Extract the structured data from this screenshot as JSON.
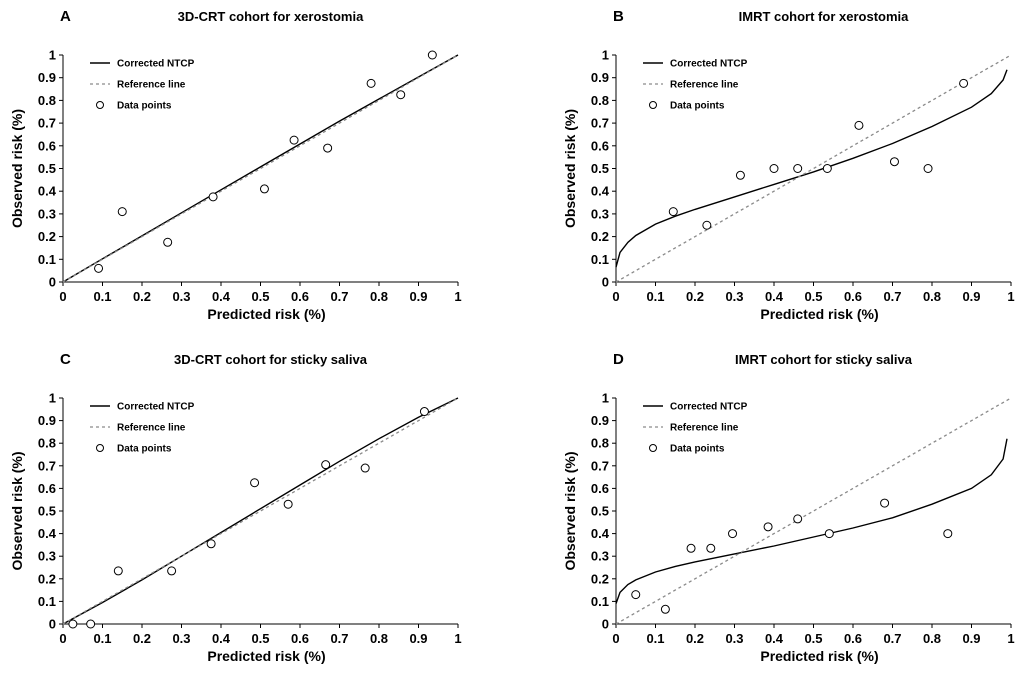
{
  "chart_data": [
    {
      "type": "scatter",
      "panel_label": "A",
      "title": "3D-CRT cohort for xerostomia",
      "xlabel": "Predicted risk (%)",
      "ylabel": "Observed risk (%)",
      "xlim": [
        0,
        1
      ],
      "ylim": [
        0,
        1
      ],
      "ticks": [
        "0",
        "0.1",
        "0.2",
        "0.3",
        "0.4",
        "0.5",
        "0.6",
        "0.7",
        "0.8",
        "0.9",
        "1"
      ],
      "legend": {
        "position": "top-left",
        "entries": [
          "Corrected NTCP",
          "Reference line",
          "Data points"
        ]
      },
      "series": [
        {
          "name": "Corrected NTCP",
          "kind": "line",
          "style": "solid",
          "x": [
            0,
            0.1,
            0.2,
            0.3,
            0.4,
            0.5,
            0.6,
            0.7,
            0.8,
            0.9,
            1
          ],
          "y": [
            0,
            0.102,
            0.203,
            0.305,
            0.406,
            0.507,
            0.608,
            0.709,
            0.806,
            0.903,
            1
          ]
        },
        {
          "name": "Reference line",
          "kind": "line",
          "style": "dashed",
          "x": [
            0,
            1
          ],
          "y": [
            0,
            1
          ]
        },
        {
          "name": "Data points",
          "kind": "points",
          "x": [
            0.09,
            0.15,
            0.265,
            0.38,
            0.51,
            0.585,
            0.67,
            0.78,
            0.855,
            0.935
          ],
          "y": [
            0.06,
            0.31,
            0.175,
            0.375,
            0.41,
            0.625,
            0.59,
            0.875,
            0.825,
            1.0
          ]
        }
      ]
    },
    {
      "type": "scatter",
      "panel_label": "B",
      "title": "IMRT cohort for xerostomia",
      "xlabel": "Predicted risk (%)",
      "ylabel": "Observed risk (%)",
      "xlim": [
        0,
        1
      ],
      "ylim": [
        0,
        1
      ],
      "ticks": [
        "0",
        "0.1",
        "0.2",
        "0.3",
        "0.4",
        "0.5",
        "0.6",
        "0.7",
        "0.8",
        "0.9",
        "1"
      ],
      "legend": {
        "position": "top-left",
        "entries": [
          "Corrected NTCP",
          "Reference line",
          "Data points"
        ]
      },
      "series": [
        {
          "name": "Corrected NTCP",
          "kind": "line",
          "style": "solid",
          "x": [
            0,
            0.01,
            0.03,
            0.05,
            0.1,
            0.15,
            0.2,
            0.3,
            0.4,
            0.5,
            0.6,
            0.7,
            0.8,
            0.9,
            0.95,
            0.98,
            0.99
          ],
          "y": [
            0.065,
            0.13,
            0.175,
            0.205,
            0.255,
            0.29,
            0.32,
            0.375,
            0.43,
            0.485,
            0.545,
            0.61,
            0.685,
            0.77,
            0.83,
            0.89,
            0.935
          ]
        },
        {
          "name": "Reference line",
          "kind": "line",
          "style": "dashed",
          "x": [
            0,
            1
          ],
          "y": [
            0,
            1
          ]
        },
        {
          "name": "Data points",
          "kind": "points",
          "x": [
            0.145,
            0.23,
            0.315,
            0.4,
            0.46,
            0.535,
            0.615,
            0.705,
            0.79,
            0.88
          ],
          "y": [
            0.31,
            0.25,
            0.47,
            0.5,
            0.5,
            0.5,
            0.69,
            0.53,
            0.5,
            0.875
          ]
        }
      ]
    },
    {
      "type": "scatter",
      "panel_label": "C",
      "title": "3D-CRT cohort for sticky saliva",
      "xlabel": "Predicted risk (%)",
      "ylabel": "Observed risk (%)",
      "xlim": [
        0,
        1
      ],
      "ylim": [
        0,
        1
      ],
      "ticks": [
        "0",
        "0.1",
        "0.2",
        "0.3",
        "0.4",
        "0.5",
        "0.6",
        "0.7",
        "0.8",
        "0.9",
        "1"
      ],
      "legend": {
        "position": "top-left",
        "entries": [
          "Corrected NTCP",
          "Reference line",
          "Data points"
        ]
      },
      "series": [
        {
          "name": "Corrected NTCP",
          "kind": "line",
          "style": "solid",
          "x": [
            0,
            0.1,
            0.2,
            0.3,
            0.4,
            0.5,
            0.6,
            0.7,
            0.8,
            0.9,
            1
          ],
          "y": [
            0,
            0.095,
            0.195,
            0.3,
            0.405,
            0.51,
            0.615,
            0.72,
            0.82,
            0.915,
            1
          ]
        },
        {
          "name": "Reference line",
          "kind": "line",
          "style": "dashed",
          "x": [
            0,
            1
          ],
          "y": [
            0,
            1
          ]
        },
        {
          "name": "Data points",
          "kind": "points",
          "x": [
            0.025,
            0.07,
            0.14,
            0.275,
            0.375,
            0.485,
            0.57,
            0.665,
            0.765,
            0.915
          ],
          "y": [
            0,
            0,
            0.235,
            0.235,
            0.355,
            0.625,
            0.53,
            0.705,
            0.69,
            0.94
          ]
        }
      ]
    },
    {
      "type": "scatter",
      "panel_label": "D",
      "title": "IMRT cohort for sticky saliva",
      "xlabel": "Predicted risk (%)",
      "ylabel": "Observed risk (%)",
      "xlim": [
        0,
        1
      ],
      "ylim": [
        0,
        1
      ],
      "ticks": [
        "0",
        "0.1",
        "0.2",
        "0.3",
        "0.4",
        "0.5",
        "0.6",
        "0.7",
        "0.8",
        "0.9",
        "1"
      ],
      "legend": {
        "position": "top-left",
        "entries": [
          "Corrected NTCP",
          "Reference line",
          "Data points"
        ]
      },
      "series": [
        {
          "name": "Corrected NTCP",
          "kind": "line",
          "style": "solid",
          "x": [
            0,
            0.01,
            0.03,
            0.05,
            0.1,
            0.15,
            0.2,
            0.3,
            0.4,
            0.5,
            0.6,
            0.7,
            0.8,
            0.9,
            0.95,
            0.98,
            0.99
          ],
          "y": [
            0.09,
            0.14,
            0.175,
            0.195,
            0.23,
            0.255,
            0.275,
            0.31,
            0.345,
            0.385,
            0.425,
            0.47,
            0.53,
            0.6,
            0.66,
            0.73,
            0.82
          ]
        },
        {
          "name": "Reference line",
          "kind": "line",
          "style": "dashed",
          "x": [
            0,
            1
          ],
          "y": [
            0,
            1
          ]
        },
        {
          "name": "Data points",
          "kind": "points",
          "x": [
            0.05,
            0.125,
            0.19,
            0.24,
            0.295,
            0.385,
            0.46,
            0.54,
            0.68,
            0.84
          ],
          "y": [
            0.13,
            0.065,
            0.335,
            0.335,
            0.4,
            0.43,
            0.465,
            0.4,
            0.535,
            0.4
          ]
        }
      ]
    }
  ]
}
